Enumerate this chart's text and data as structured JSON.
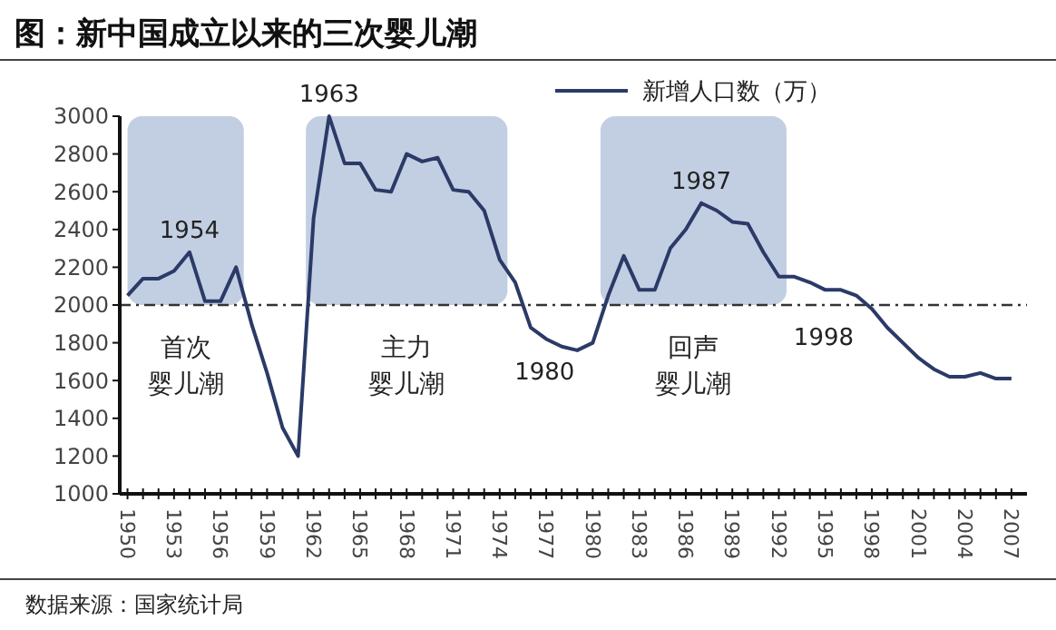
{
  "chart_data": {
    "type": "line",
    "title": "图：新中国成立以来的三次婴儿潮",
    "x": [
      1950,
      1951,
      1952,
      1953,
      1954,
      1955,
      1956,
      1957,
      1958,
      1959,
      1960,
      1961,
      1962,
      1963,
      1964,
      1965,
      1966,
      1967,
      1968,
      1969,
      1970,
      1971,
      1972,
      1973,
      1974,
      1975,
      1976,
      1977,
      1978,
      1979,
      1980,
      1981,
      1982,
      1983,
      1984,
      1985,
      1986,
      1987,
      1988,
      1989,
      1990,
      1991,
      1992,
      1993,
      1994,
      1995,
      1996,
      1997,
      1998,
      1999,
      2000,
      2001,
      2002,
      2003,
      2004,
      2005,
      2006,
      2007
    ],
    "series": [
      {
        "name": "新增人口数（万）",
        "color": "#2b3a67",
        "values": [
          2050,
          2140,
          2140,
          2180,
          2280,
          2020,
          2020,
          2200,
          1900,
          1640,
          1350,
          1200,
          2460,
          3000,
          2750,
          2750,
          2610,
          2600,
          2800,
          2760,
          2780,
          2610,
          2600,
          2500,
          2240,
          2120,
          1880,
          1820,
          1780,
          1760,
          1800,
          2050,
          2260,
          2080,
          2080,
          2300,
          2400,
          2540,
          2500,
          2440,
          2430,
          2280,
          2150,
          2150,
          2120,
          2080,
          2080,
          2050,
          1980,
          1880,
          1800,
          1720,
          1660,
          1620,
          1620,
          1640,
          1610,
          1610
        ]
      }
    ],
    "xlim": [
      1949.5,
      2008
    ],
    "xticks": [
      1950,
      {
        "value": 1951,
        "label": null
      },
      {
        "value": 1952,
        "label": null
      },
      1953,
      {
        "value": 1954,
        "label": null
      },
      {
        "value": 1955,
        "label": null
      },
      1956,
      {
        "value": 1957,
        "label": null
      },
      {
        "value": 1958,
        "label": null
      },
      1959,
      {
        "value": 1960,
        "label": null
      },
      {
        "value": 1961,
        "label": null
      },
      1962,
      {
        "value": 1963,
        "label": null
      },
      {
        "value": 1964,
        "label": null
      },
      1965,
      {
        "value": 1966,
        "label": null
      },
      {
        "value": 1967,
        "label": null
      },
      1968,
      {
        "value": 1969,
        "label": null
      },
      {
        "value": 1970,
        "label": null
      },
      1971,
      {
        "value": 1972,
        "label": null
      },
      {
        "value": 1973,
        "label": null
      },
      1974,
      {
        "value": 1975,
        "label": null
      },
      {
        "value": 1976,
        "label": null
      },
      1977,
      {
        "value": 1978,
        "label": null
      },
      {
        "value": 1979,
        "label": null
      },
      1980,
      {
        "value": 1981,
        "label": null
      },
      {
        "value": 1982,
        "label": null
      },
      1983,
      {
        "value": 1984,
        "label": null
      },
      {
        "value": 1985,
        "label": null
      },
      1986,
      {
        "value": 1987,
        "label": null
      },
      {
        "value": 1988,
        "label": null
      },
      1989,
      {
        "value": 1990,
        "label": null
      },
      {
        "value": 1991,
        "label": null
      },
      1992,
      {
        "value": 1993,
        "label": null
      },
      {
        "value": 1994,
        "label": null
      },
      1995,
      {
        "value": 1996,
        "label": null
      },
      {
        "value": 1997,
        "label": null
      },
      1998,
      {
        "value": 1999,
        "label": null
      },
      {
        "value": 2000,
        "label": null
      },
      2001,
      {
        "value": 2002,
        "label": null
      },
      {
        "value": 2003,
        "label": null
      },
      2004,
      {
        "value": 2005,
        "label": null
      },
      {
        "value": 2006,
        "label": null
      },
      2007
    ],
    "ylim": [
      1000,
      3000
    ],
    "yticks": [
      1000,
      1200,
      1400,
      1600,
      1800,
      2000,
      2200,
      2400,
      2600,
      2800,
      3000
    ],
    "ref_lines": [
      {
        "axis": "y",
        "value": 2000,
        "color": "#333333",
        "line_style": "dashdot"
      }
    ],
    "bands": [
      {
        "axis": "x",
        "from": 1950,
        "to": 1957.5,
        "label": "首次婴儿潮",
        "color": "#b7c7de"
      },
      {
        "axis": "x",
        "from": 1961.5,
        "to": 1974.5,
        "label": "主力婴儿潮",
        "color": "#b7c7de"
      },
      {
        "axis": "x",
        "from": 1980.5,
        "to": 1992.5,
        "label": "回声婴儿潮",
        "color": "#b7c7de"
      }
    ],
    "annotations": [
      {
        "text": "1954",
        "x": 1954,
        "y": 2280
      },
      {
        "text": "1963",
        "x": 1963,
        "y": 3000
      },
      {
        "text": "1987",
        "x": 1987,
        "y": 2540
      },
      {
        "text": "1980",
        "x": 1980,
        "y": 1800
      },
      {
        "text": "1998",
        "x": 1998,
        "y": 1980
      },
      "数据来源：国家统计局"
    ],
    "legend": "top right",
    "grid": false
  }
}
